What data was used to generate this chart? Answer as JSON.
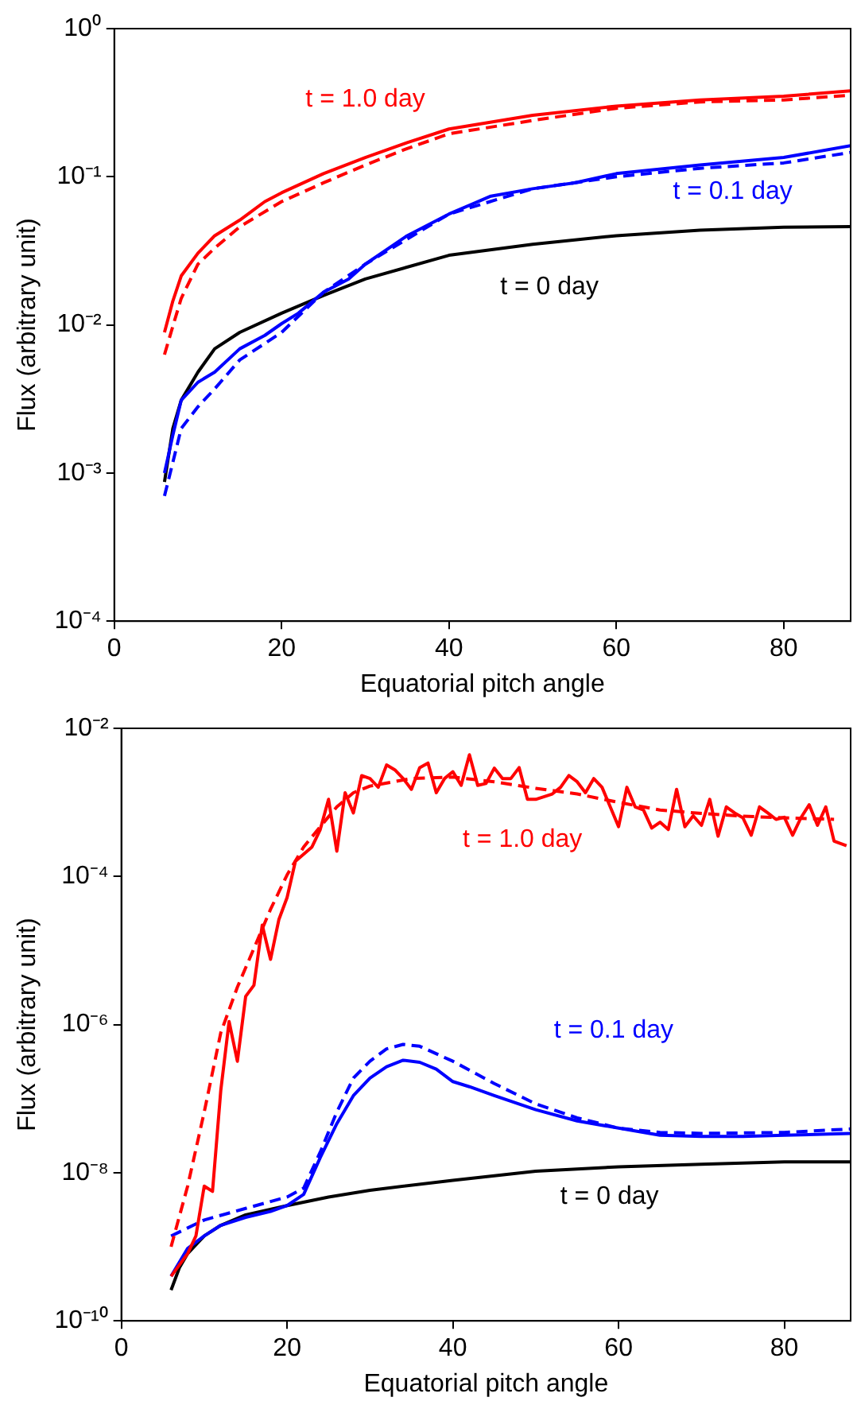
{
  "chart_data": [
    {
      "type": "line",
      "xlabel": "Equatorial pitch angle",
      "ylabel": "Flux (arbitrary unit)",
      "log": "y",
      "grid": false,
      "xlim": [
        0,
        88
      ],
      "xticks": [
        0,
        20,
        40,
        60,
        80
      ],
      "ylim": [
        0.0001,
        1
      ],
      "yticks": [
        {
          "value": 0.0001,
          "label": "10⁻⁴"
        },
        {
          "value": 0.001,
          "label": "10⁻³"
        },
        {
          "value": 0.01,
          "label": "10⁻²"
        },
        {
          "value": 0.1,
          "label": "10⁻¹"
        },
        {
          "value": 1,
          "label": "10⁰"
        }
      ],
      "series": [
        {
          "name": "t = 1.0 day",
          "color": "#ff0000",
          "line_style": "solid",
          "x": [
            6,
            7,
            8,
            10,
            12,
            15,
            18,
            20,
            25,
            30,
            35,
            40,
            50,
            60,
            70,
            80,
            88
          ],
          "values": [
            0.0089,
            0.0145,
            0.0214,
            0.0305,
            0.04,
            0.051,
            0.068,
            0.078,
            0.105,
            0.135,
            0.17,
            0.21,
            0.26,
            0.3,
            0.33,
            0.35,
            0.38
          ]
        },
        {
          "color": "#ff0000",
          "line_style": "dashed",
          "x": [
            6,
            7,
            8,
            10,
            12,
            15,
            20,
            25,
            30,
            35,
            40,
            50,
            60,
            70,
            80,
            88
          ],
          "values": [
            0.0063,
            0.0098,
            0.0151,
            0.0257,
            0.033,
            0.046,
            0.068,
            0.091,
            0.12,
            0.155,
            0.195,
            0.24,
            0.29,
            0.32,
            0.33,
            0.355
          ]
        },
        {
          "name": "t = 0.1 day",
          "color": "#0000ff",
          "line_style": "solid",
          "x": [
            6,
            7,
            8,
            10,
            12,
            15,
            18,
            20,
            22,
            25,
            28,
            30,
            35,
            40,
            45,
            50,
            55,
            60,
            70,
            80,
            88
          ],
          "values": [
            0.001,
            0.0018,
            0.0031,
            0.0041,
            0.0048,
            0.0069,
            0.0085,
            0.0102,
            0.012,
            0.0166,
            0.0204,
            0.0257,
            0.04,
            0.056,
            0.074,
            0.083,
            0.091,
            0.105,
            0.12,
            0.135,
            0.162
          ]
        },
        {
          "color": "#0000ff",
          "line_style": "dashed",
          "x": [
            6,
            7,
            8,
            10,
            12,
            15,
            18,
            20,
            25,
            30,
            35,
            40,
            50,
            60,
            70,
            80,
            88
          ],
          "values": [
            0.0007,
            0.00118,
            0.002,
            0.0028,
            0.0037,
            0.0058,
            0.0075,
            0.0089,
            0.0166,
            0.0257,
            0.038,
            0.056,
            0.083,
            0.1,
            0.114,
            0.124,
            0.146
          ]
        },
        {
          "name": "t = 0 day",
          "color": "#000000",
          "line_style": "solid",
          "x": [
            6,
            7,
            8,
            10,
            12,
            15,
            20,
            25,
            30,
            40,
            50,
            60,
            70,
            80,
            88
          ],
          "values": [
            0.00087,
            0.002,
            0.0031,
            0.0048,
            0.0069,
            0.0089,
            0.012,
            0.0158,
            0.0204,
            0.0295,
            0.035,
            0.04,
            0.0436,
            0.0457,
            0.0461
          ]
        }
      ]
    },
    {
      "type": "line",
      "xlabel": "Equatorial pitch angle",
      "ylabel": "Flux (arbitrary unit)",
      "log": "y",
      "grid": false,
      "xlim": [
        0,
        88
      ],
      "xticks": [
        0,
        20,
        40,
        60,
        80
      ],
      "ylim": [
        1e-10,
        0.01
      ],
      "yticks": [
        {
          "value": 1e-10,
          "label": "10⁻¹⁰"
        },
        {
          "value": 1e-08,
          "label": "10⁻⁸"
        },
        {
          "value": 1e-06,
          "label": "10⁻⁶"
        },
        {
          "value": 0.0001,
          "label": "10⁻⁴"
        },
        {
          "value": 0.01,
          "label": "10⁻²"
        }
      ],
      "series": [
        {
          "name": "t = 1.0 day",
          "color": "#ff0000",
          "line_style": "solid",
          "x": [
            6,
            8,
            9,
            10,
            11,
            12,
            13,
            14,
            15,
            16,
            17,
            18,
            19,
            20,
            21,
            23,
            24,
            25,
            26,
            27,
            28,
            29,
            30,
            31,
            32,
            33,
            34,
            35,
            36,
            37,
            38,
            39,
            40,
            41,
            42,
            43,
            44,
            45,
            46,
            47,
            48,
            49,
            50,
            52,
            53,
            54,
            55,
            56,
            57,
            58,
            60,
            61,
            62,
            63,
            64,
            65,
            66,
            67,
            68,
            69,
            70,
            71,
            72,
            73,
            74,
            75,
            76,
            77,
            78,
            79,
            80,
            81,
            82,
            83,
            84,
            85,
            86,
            87.5
          ],
          "values": [
            4e-10,
            8.1e-10,
            1.4e-09,
            6.6e-09,
            5.6e-09,
            1.3e-07,
            1.1e-06,
            3.2e-07,
            2.4e-06,
            3.4e-06,
            2.2e-05,
            7.6e-06,
            2.6e-05,
            5.2e-05,
            0.00016,
            0.00025,
            0.00043,
            0.0011,
            0.00022,
            0.00135,
            0.00072,
            0.0023,
            0.0021,
            0.0016,
            0.0032,
            0.00275,
            0.0021,
            0.0015,
            0.00295,
            0.0034,
            0.00135,
            0.0021,
            0.0026,
            0.0017,
            0.0044,
            0.0017,
            0.0018,
            0.0029,
            0.0021,
            0.0021,
            0.00295,
            0.0011,
            0.0011,
            0.0013,
            0.0016,
            0.0023,
            0.0019,
            0.00135,
            0.0021,
            0.0016,
            0.00047,
            0.0016,
            0.00087,
            0.00079,
            0.00045,
            0.00054,
            0.00043,
            0.0015,
            0.00047,
            0.00066,
            0.00049,
            0.0011,
            0.00035,
            0.00087,
            0.00072,
            0.00062,
            0.00036,
            0.00087,
            0.00072,
            0.00059,
            0.00063,
            0.00036,
            0.00062,
            0.00093,
            0.00049,
            0.00087,
            0.0003,
            0.00026
          ]
        },
        {
          "color": "#ff0000",
          "line_style": "dashed",
          "x": [
            6,
            8,
            10,
            12,
            14,
            16,
            18,
            20,
            22,
            24,
            26,
            28,
            30,
            35,
            40,
            45,
            50,
            55,
            60,
            65,
            70,
            75,
            80,
            86
          ],
          "values": [
            1e-09,
            6.6e-09,
            6.6e-08,
            7.8e-07,
            3.2e-06,
            1.07e-05,
            3.6e-05,
            0.000105,
            0.00025,
            0.00047,
            0.00087,
            0.00135,
            0.00166,
            0.0021,
            0.0022,
            0.0019,
            0.00155,
            0.0013,
            0.001,
            0.00079,
            0.00071,
            0.00065,
            0.00062,
            0.00059
          ]
        },
        {
          "name": "t = 0.1 day",
          "color": "#0000ff",
          "line_style": "solid",
          "x": [
            6,
            8,
            10,
            12,
            15,
            18,
            20,
            22,
            24,
            26,
            28,
            30,
            32,
            34,
            36,
            38,
            40,
            42,
            45,
            50,
            55,
            60,
            65,
            70,
            75,
            80,
            88
          ],
          "values": [
            4e-10,
            9.5e-10,
            1.4e-09,
            1.95e-09,
            2.5e-09,
            3e-09,
            3.6e-09,
            5.1e-09,
            1.6e-08,
            4.6e-08,
            1.1e-07,
            1.9e-07,
            2.7e-07,
            3.3e-07,
            3.1e-07,
            2.5e-07,
            1.7e-07,
            1.45e-07,
            1.1e-07,
            7.1e-08,
            5e-08,
            4e-08,
            3.2e-08,
            3.1e-08,
            3.1e-08,
            3.2e-08,
            3.4e-08
          ]
        },
        {
          "color": "#0000ff",
          "line_style": "dashed",
          "x": [
            6,
            10,
            15,
            20,
            22,
            24,
            26,
            28,
            30,
            32,
            34,
            36,
            40,
            45,
            50,
            55,
            60,
            65,
            70,
            80,
            88
          ],
          "values": [
            1.4e-09,
            2.3e-09,
            3.3e-09,
            4.7e-09,
            6.2e-09,
            1.9e-08,
            6.6e-08,
            1.9e-07,
            3.2e-07,
            4.7e-07,
            5.4e-07,
            5.1e-07,
            3.2e-07,
            1.6e-07,
            8.5e-08,
            5.5e-08,
            4e-08,
            3.5e-08,
            3.4e-08,
            3.5e-08,
            3.9e-08
          ]
        },
        {
          "name": "t = 0 day",
          "color": "#000000",
          "line_style": "solid",
          "x": [
            6,
            7,
            8,
            10,
            12,
            15,
            20,
            25,
            30,
            40,
            50,
            60,
            70,
            80,
            88
          ],
          "values": [
            2.6e-10,
            5.2e-10,
            8.1e-10,
            1.4e-09,
            1.95e-09,
            2.7e-09,
            3.6e-09,
            4.7e-09,
            5.8e-09,
            7.9e-09,
            1.05e-08,
            1.2e-08,
            1.3e-08,
            1.4e-08,
            1.4e-08
          ]
        }
      ]
    }
  ]
}
